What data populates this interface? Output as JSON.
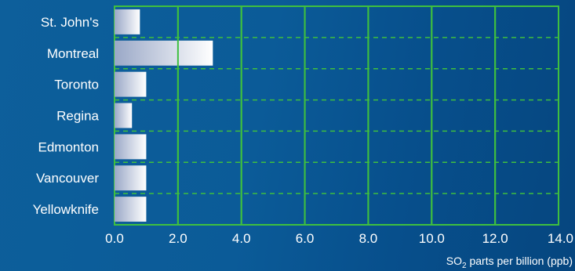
{
  "chart_data": {
    "type": "bar",
    "orientation": "horizontal",
    "categories": [
      "St. John's",
      "Montreal",
      "Toronto",
      "Regina",
      "Edmonton",
      "Vancouver",
      "Yellowknife"
    ],
    "values": [
      0.8,
      3.1,
      1.0,
      0.55,
      1.0,
      1.0,
      1.0
    ],
    "xlim": [
      0,
      14
    ],
    "xticks": [
      "0.0",
      "2.0",
      "4.0",
      "6.0",
      "8.0",
      "10.0",
      "12.0",
      "14.0"
    ],
    "xlabel_main": "SO",
    "xlabel_sub": "2",
    "xlabel_rest": " parts per billion (ppb)",
    "grid": true,
    "grid_color": "#3fbf3f",
    "bar_color_start": "#9aa8c7",
    "bar_color_end": "#ffffff"
  }
}
